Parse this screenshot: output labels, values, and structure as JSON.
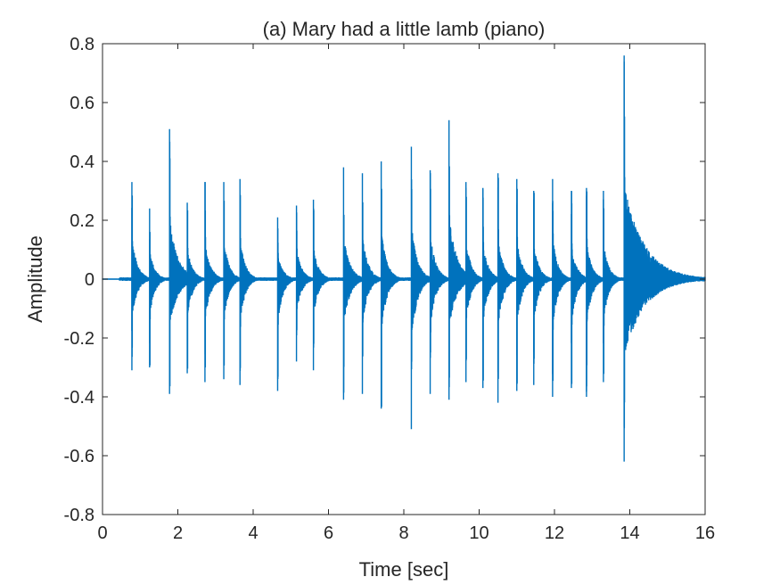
{
  "chart_data": {
    "type": "line",
    "title": "(a) Mary had a little lamb (piano)",
    "xlabel": "Time [sec]",
    "ylabel": "Amplitude",
    "xlim": [
      0,
      16
    ],
    "ylim": [
      -0.8,
      0.8
    ],
    "xticks": [
      0,
      2,
      4,
      6,
      8,
      10,
      12,
      14,
      16
    ],
    "yticks": [
      -0.8,
      -0.6,
      -0.4,
      -0.2,
      0,
      0.2,
      0.4,
      0.6,
      0.8
    ],
    "xtick_labels": [
      "0",
      "2",
      "4",
      "6",
      "8",
      "10",
      "12",
      "14",
      "16"
    ],
    "ytick_labels": [
      "-0.8",
      "-0.6",
      "-0.4",
      "-0.2",
      "0",
      "0.2",
      "0.4",
      "0.6",
      "0.8"
    ],
    "grid": false,
    "series": [
      {
        "color": "#0072BD",
        "notes": [
          {
            "onset": 0.78,
            "peak_pos": 0.33,
            "peak_neg": -0.31,
            "decay": 0.15
          },
          {
            "onset": 1.25,
            "peak_pos": 0.24,
            "peak_neg": -0.3,
            "decay": 0.14
          },
          {
            "onset": 1.78,
            "peak_pos": 0.51,
            "peak_neg": -0.39,
            "decay": 0.22
          },
          {
            "onset": 2.25,
            "peak_pos": 0.26,
            "peak_neg": -0.32,
            "decay": 0.14
          },
          {
            "onset": 2.72,
            "peak_pos": 0.33,
            "peak_neg": -0.35,
            "decay": 0.14
          },
          {
            "onset": 3.22,
            "peak_pos": 0.33,
            "peak_neg": -0.34,
            "decay": 0.14
          },
          {
            "onset": 3.65,
            "peak_pos": 0.34,
            "peak_neg": -0.36,
            "decay": 0.14
          },
          {
            "onset": 4.65,
            "peak_pos": 0.21,
            "peak_neg": -0.38,
            "decay": 0.14
          },
          {
            "onset": 5.15,
            "peak_pos": 0.25,
            "peak_neg": -0.28,
            "decay": 0.14
          },
          {
            "onset": 5.6,
            "peak_pos": 0.27,
            "peak_neg": -0.31,
            "decay": 0.14
          },
          {
            "onset": 6.4,
            "peak_pos": 0.38,
            "peak_neg": -0.41,
            "decay": 0.16
          },
          {
            "onset": 6.9,
            "peak_pos": 0.36,
            "peak_neg": -0.39,
            "decay": 0.15
          },
          {
            "onset": 7.4,
            "peak_pos": 0.4,
            "peak_neg": -0.44,
            "decay": 0.15
          },
          {
            "onset": 8.2,
            "peak_pos": 0.45,
            "peak_neg": -0.51,
            "decay": 0.16
          },
          {
            "onset": 8.7,
            "peak_pos": 0.37,
            "peak_neg": -0.39,
            "decay": 0.15
          },
          {
            "onset": 9.2,
            "peak_pos": 0.54,
            "peak_neg": -0.41,
            "decay": 0.2
          },
          {
            "onset": 9.65,
            "peak_pos": 0.33,
            "peak_neg": -0.35,
            "decay": 0.14
          },
          {
            "onset": 10.1,
            "peak_pos": 0.31,
            "peak_neg": -0.37,
            "decay": 0.14
          },
          {
            "onset": 10.5,
            "peak_pos": 0.36,
            "peak_neg": -0.42,
            "decay": 0.14
          },
          {
            "onset": 11.0,
            "peak_pos": 0.34,
            "peak_neg": -0.38,
            "decay": 0.14
          },
          {
            "onset": 11.45,
            "peak_pos": 0.3,
            "peak_neg": -0.36,
            "decay": 0.14
          },
          {
            "onset": 11.95,
            "peak_pos": 0.34,
            "peak_neg": -0.4,
            "decay": 0.14
          },
          {
            "onset": 12.45,
            "peak_pos": 0.3,
            "peak_neg": -0.37,
            "decay": 0.14
          },
          {
            "onset": 12.85,
            "peak_pos": 0.31,
            "peak_neg": -0.4,
            "decay": 0.14
          },
          {
            "onset": 13.3,
            "peak_pos": 0.3,
            "peak_neg": -0.35,
            "decay": 0.14
          },
          {
            "onset": 13.85,
            "peak_pos": 0.76,
            "peak_neg": -0.62,
            "decay": 0.55
          }
        ]
      }
    ]
  }
}
